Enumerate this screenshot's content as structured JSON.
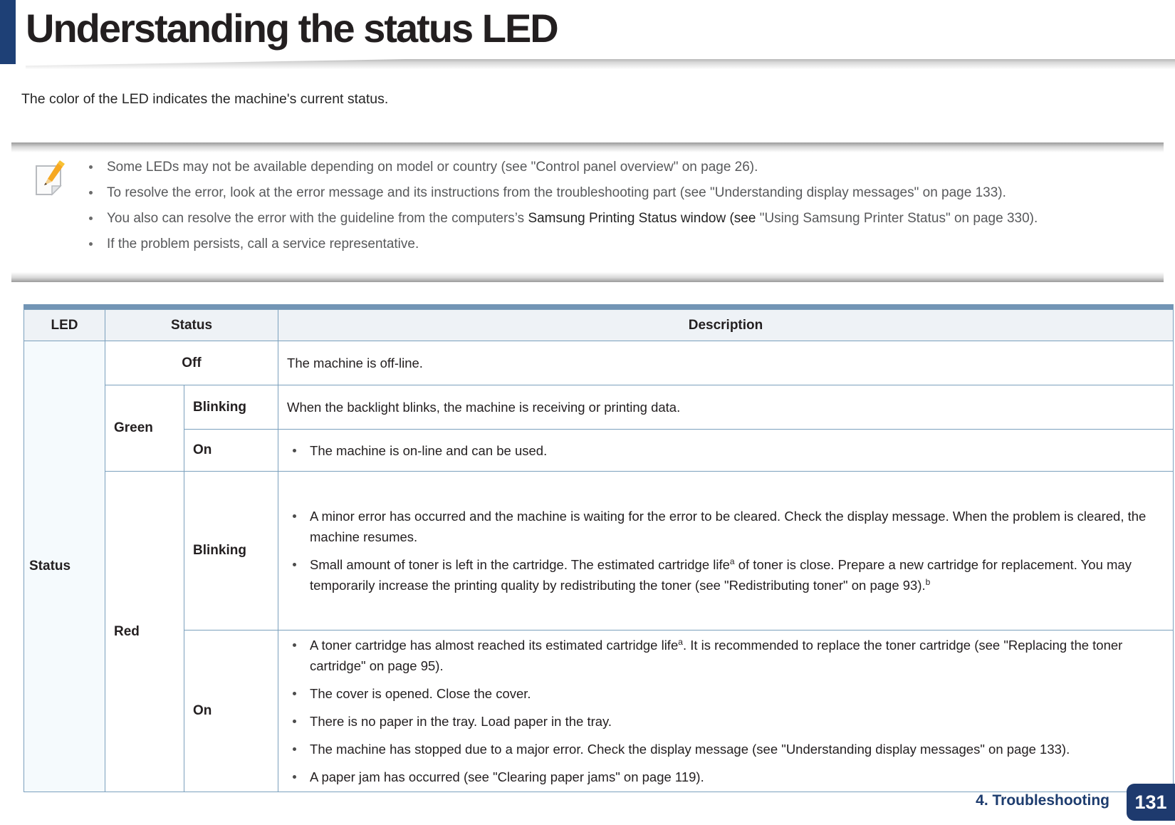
{
  "page": {
    "title": "Understanding the status LED",
    "intro": "The color of the LED indicates the machine's current status.",
    "footer": {
      "chapter": "4. Troubleshooting",
      "page_number": "131"
    }
  },
  "colors": {
    "accent_navy": "#1e4076",
    "footer_navy": "#1d3c6e",
    "badge_navy": "#1e3a6e",
    "table_top_bar": "#7295b5",
    "table_border": "#7ba0bd",
    "header_bg": "#eef2f6",
    "led_column_bg": "#f5fafd",
    "note_text_gray": "#58595b",
    "body_text": "#231f20"
  },
  "note": {
    "icon": "note-pencil-icon",
    "bullets": [
      {
        "segments": [
          {
            "t": "Some LEDs may not be available depending on model or country (see \"Control panel overview\" on page 26)."
          }
        ]
      },
      {
        "segments": [
          {
            "t": "To resolve the error, look at the error message and its instructions from the troubleshooting part (see \"Understanding display messages\" on page 133)."
          }
        ]
      },
      {
        "segments": [
          {
            "t": "You also can resolve the error with the guideline from the computers’s "
          },
          {
            "t": "Samsung Printing Status window (see ",
            "dark": true
          },
          {
            "t": "\"Using Samsung Printer Status\" on page 330)."
          }
        ]
      },
      {
        "segments": [
          {
            "t": "If the problem persists, call a service representative."
          }
        ]
      }
    ]
  },
  "table": {
    "headers": {
      "led": "LED",
      "status": "Status",
      "description": "Description"
    },
    "led_rowspan_label": "Status",
    "rows": {
      "off": {
        "status": "Off",
        "desc": [
          {
            "bullet": false,
            "segments": [
              {
                "t": "The machine is off-line."
              }
            ]
          }
        ]
      },
      "green": {
        "color": "Green",
        "blinking": {
          "status": "Blinking",
          "desc": [
            {
              "bullet": false,
              "segments": [
                {
                  "t": "When the backlight blinks, the machine is receiving or printing data."
                }
              ]
            }
          ]
        },
        "on": {
          "status": "On",
          "desc": [
            {
              "bullet": true,
              "segments": [
                {
                  "t": "The machine is on-line and can be used."
                }
              ]
            }
          ]
        }
      },
      "red": {
        "color": "Red",
        "blinking": {
          "status": "Blinking",
          "desc": [
            {
              "bullet": true,
              "segments": [
                {
                  "t": "A minor error has occurred and the machine is waiting for the error to be cleared. Check the display message. When the problem is cleared, the machine resumes."
                }
              ]
            },
            {
              "bullet": true,
              "segments": [
                {
                  "t": "Small amount of toner is left in the cartridge. The estimated cartridge life"
                },
                {
                  "t": "a",
                  "sup": true
                },
                {
                  "t": " of toner is close. Prepare a new cartridge for replacement. You may temporarily increase the printing quality by redistributing the toner (see \"Redistributing toner\" on page 93)."
                },
                {
                  "t": "b",
                  "sup": true
                }
              ]
            }
          ]
        },
        "on": {
          "status": "On",
          "desc": [
            {
              "bullet": true,
              "segments": [
                {
                  "t": "A toner cartridge has almost reached its estimated cartridge life"
                },
                {
                  "t": "a",
                  "sup": true
                },
                {
                  "t": ". It is recommended to replace the toner cartridge (see \"Replacing the toner cartridge\" on page 95)."
                }
              ]
            },
            {
              "bullet": true,
              "segments": [
                {
                  "t": "The cover is opened. Close the cover."
                }
              ]
            },
            {
              "bullet": true,
              "segments": [
                {
                  "t": "There is no paper in the tray. Load paper in the tray."
                }
              ]
            },
            {
              "bullet": true,
              "segments": [
                {
                  "t": "The machine has stopped due to a major error. Check the display message (see \"Understanding display messages\" on page 133)."
                }
              ]
            },
            {
              "bullet": true,
              "segments": [
                {
                  "t": "A paper jam has occurred (see \"Clearing paper jams\" on page 119)."
                }
              ]
            }
          ]
        }
      }
    }
  }
}
